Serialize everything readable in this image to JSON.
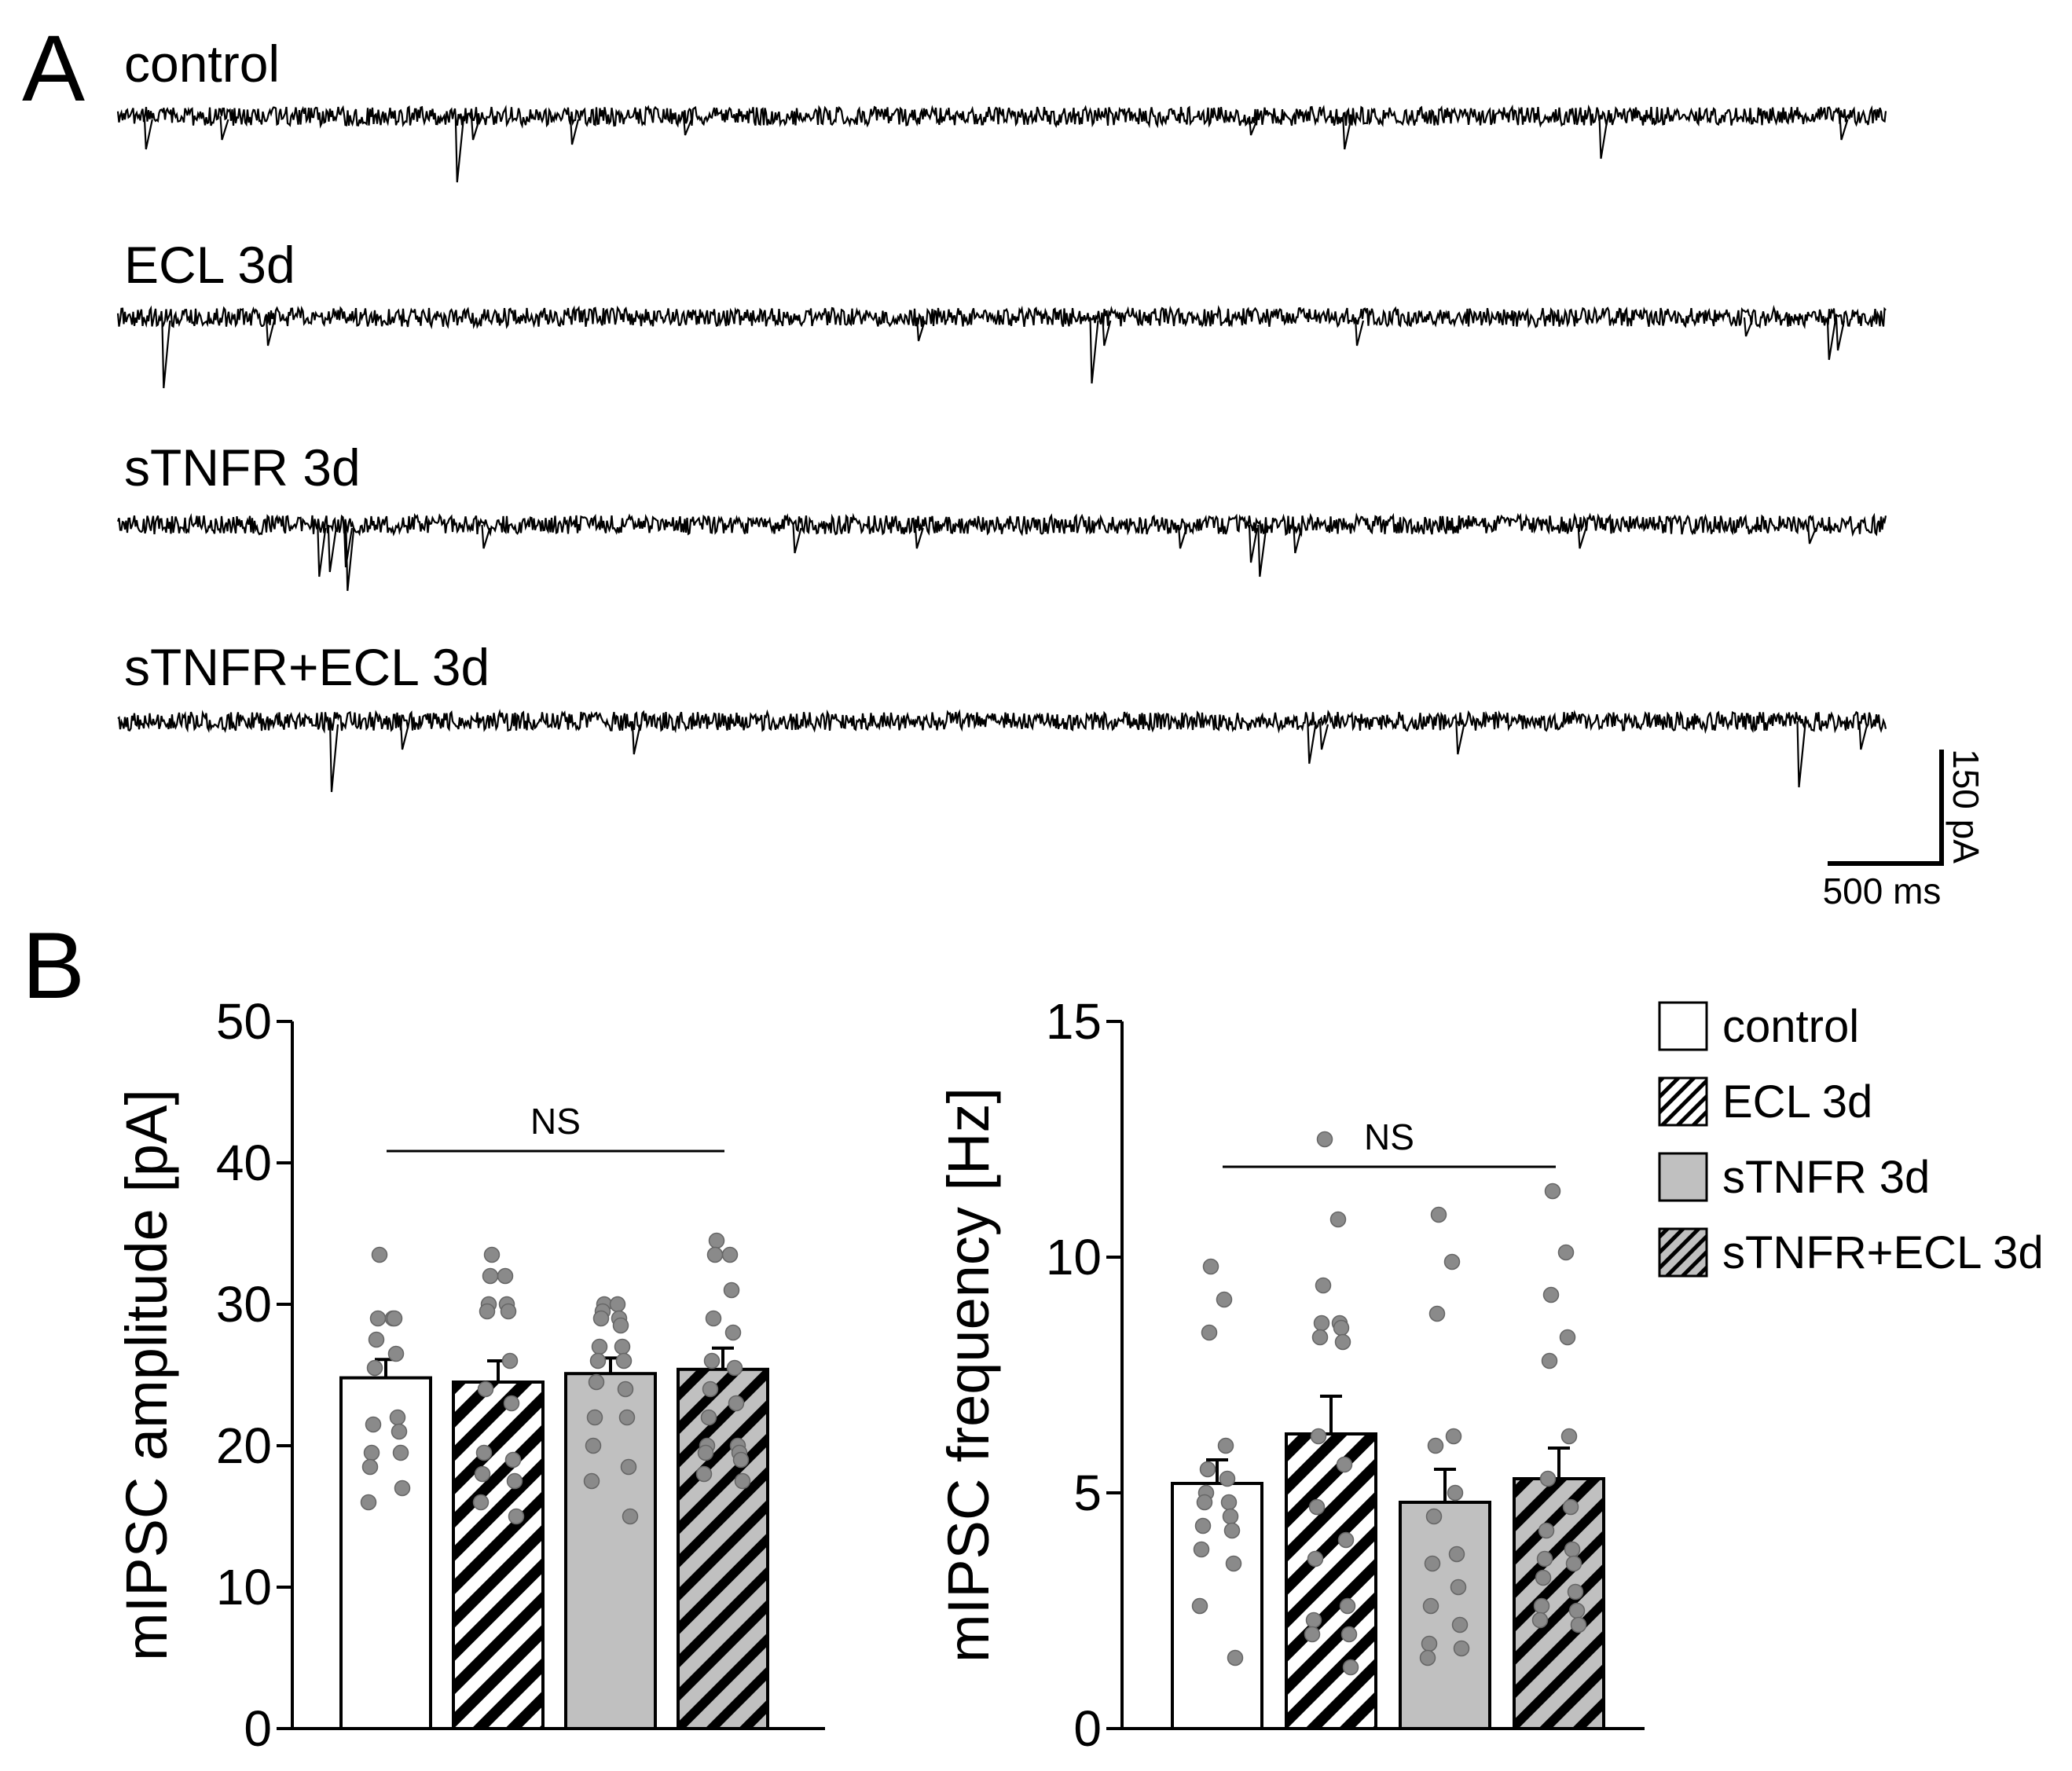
{
  "panel_labels": {
    "a": "A",
    "b": "B"
  },
  "traces": {
    "items": [
      {
        "label": "control",
        "events": [
          [
            0.015,
            0.35
          ],
          [
            0.058,
            0.25
          ],
          [
            0.191,
            0.7
          ],
          [
            0.2,
            0.25
          ],
          [
            0.256,
            0.3
          ],
          [
            0.32,
            0.2
          ],
          [
            0.64,
            0.2
          ],
          [
            0.693,
            0.35
          ],
          [
            0.838,
            0.45
          ],
          [
            0.974,
            0.25
          ]
        ]
      },
      {
        "label": "ECL 3d",
        "events": [
          [
            0.025,
            0.75
          ],
          [
            0.084,
            0.3
          ],
          [
            0.452,
            0.25
          ],
          [
            0.55,
            0.7
          ],
          [
            0.557,
            0.3
          ],
          [
            0.7,
            0.3
          ],
          [
            0.92,
            0.2
          ],
          [
            0.967,
            0.45
          ],
          [
            0.972,
            0.35
          ]
        ]
      },
      {
        "label": "sTNFR  3d",
        "events": [
          [
            0.113,
            0.55
          ],
          [
            0.119,
            0.5
          ],
          [
            0.128,
            0.45
          ],
          [
            0.129,
            0.7
          ],
          [
            0.206,
            0.25
          ],
          [
            0.382,
            0.3
          ],
          [
            0.451,
            0.25
          ],
          [
            0.6,
            0.25
          ],
          [
            0.64,
            0.4
          ],
          [
            0.645,
            0.55
          ],
          [
            0.665,
            0.3
          ],
          [
            0.826,
            0.25
          ],
          [
            0.956,
            0.2
          ]
        ]
      },
      {
        "label": "sTNFR+ECL 3d",
        "events": [
          [
            0.12,
            0.75
          ],
          [
            0.16,
            0.3
          ],
          [
            0.291,
            0.35
          ],
          [
            0.673,
            0.45
          ],
          [
            0.68,
            0.3
          ],
          [
            0.757,
            0.35
          ],
          [
            0.95,
            0.7
          ],
          [
            0.985,
            0.3
          ]
        ]
      }
    ],
    "scale_bar": {
      "time_label": "500 ms",
      "current_label": "150 pA"
    }
  },
  "chart_data": [
    {
      "type": "bar",
      "categories": [
        "control",
        "ECL 3d",
        "sTNFR 3d",
        "sTNFR+ECL 3d"
      ],
      "values": [
        24.8,
        24.5,
        25.1,
        25.4
      ],
      "errors": [
        1.3,
        1.5,
        1.1,
        1.5
      ],
      "points": [
        [
          33.5,
          29,
          29,
          29,
          27.5,
          26.5,
          25.5,
          22,
          21.5,
          21,
          19.5,
          19.5,
          18.5,
          17,
          16
        ],
        [
          33.5,
          32,
          32,
          30,
          30,
          29.5,
          29.5,
          26,
          24,
          23,
          19.5,
          19,
          18,
          17.5,
          16,
          15
        ],
        [
          30,
          30,
          29.5,
          29,
          29,
          28.5,
          27,
          27,
          26,
          26,
          24.5,
          24,
          22,
          22,
          20,
          18.5,
          17.5,
          15
        ],
        [
          34.5,
          33.5,
          33.5,
          31,
          29,
          28,
          26,
          25.5,
          24,
          23,
          22,
          20,
          20,
          19.5,
          19.5,
          19,
          18,
          17.5
        ]
      ],
      "ylabel": "mIPSC amplitude [pA]",
      "ylim": [
        0,
        50
      ],
      "yticks": [
        "0",
        "10",
        "20",
        "30",
        "40",
        "50"
      ],
      "significance": "NS"
    },
    {
      "type": "bar",
      "categories": [
        "control",
        "ECL 3d",
        "sTNFR 3d",
        "sTNFR+ECL 3d"
      ],
      "values": [
        5.2,
        6.25,
        4.8,
        5.3
      ],
      "errors": [
        0.5,
        0.8,
        0.7,
        0.65
      ],
      "points": [
        [
          9.8,
          9.1,
          8.4,
          6,
          5.5,
          5.3,
          5,
          4.8,
          4.8,
          4.5,
          4.3,
          4.2,
          3.8,
          3.5,
          2.6,
          1.5
        ],
        [
          12.5,
          10.8,
          9.4,
          8.6,
          8.6,
          8.5,
          8.3,
          8.2,
          6.2,
          5.6,
          4.7,
          4,
          3.6,
          2.6,
          2.3,
          2,
          2,
          1.3
        ],
        [
          10.9,
          9.9,
          8.8,
          6.2,
          6,
          5,
          4.5,
          3.7,
          3.5,
          3,
          2.6,
          2.2,
          1.8,
          1.7,
          1.5
        ],
        [
          11.4,
          10.1,
          9.2,
          8.3,
          7.8,
          6.2,
          5.3,
          4.7,
          4.2,
          3.8,
          3.6,
          3.5,
          3.2,
          2.9,
          2.6,
          2.5,
          2.3,
          2.2
        ]
      ],
      "ylabel": "mIPSC frequency [Hz]",
      "ylim": [
        0,
        15
      ],
      "yticks": [
        "0",
        "5",
        "10",
        "15"
      ],
      "significance": "NS"
    }
  ],
  "legend": [
    {
      "label": "control",
      "pattern": "open"
    },
    {
      "label": "ECL 3d",
      "pattern": "hatched"
    },
    {
      "label": "sTNFR 3d",
      "pattern": "gray"
    },
    {
      "label": "sTNFR+ECL 3d",
      "pattern": "gray-hatched"
    }
  ],
  "colors": {
    "dot_fill": "#8a8a8a",
    "gray_fill": "#c0c0c0",
    "ink": "#000000"
  }
}
